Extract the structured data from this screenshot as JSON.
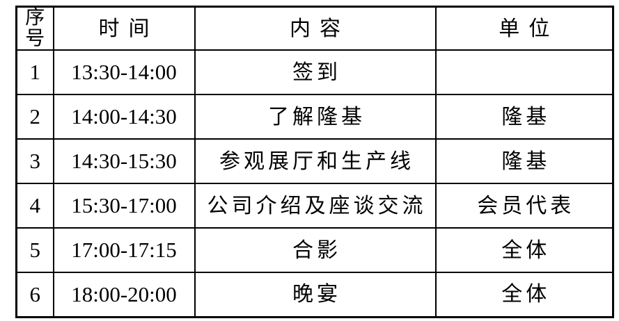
{
  "page": {
    "background_color": "#ffffff",
    "text_color": "#000000",
    "border_color": "#000000"
  },
  "table": {
    "headers": {
      "seq": "序号",
      "time": "时间",
      "content": "内容",
      "unit": "单位"
    },
    "rows": [
      {
        "seq": "1",
        "time": "13:30-14:00",
        "content": "签到",
        "unit": ""
      },
      {
        "seq": "2",
        "time": "14:00-14:30",
        "content": "了解隆基",
        "unit": "隆基"
      },
      {
        "seq": "3",
        "time": "14:30-15:30",
        "content": "参观展厅和生产线",
        "unit": "隆基"
      },
      {
        "seq": "4",
        "time": "15:30-17:00",
        "content": "公司介绍及座谈交流",
        "unit": "会员代表"
      },
      {
        "seq": "5",
        "time": "17:00-17:15",
        "content": "合影",
        "unit": "全体"
      },
      {
        "seq": "6",
        "time": "18:00-20:00",
        "content": "晚宴",
        "unit": "全体"
      }
    ]
  }
}
